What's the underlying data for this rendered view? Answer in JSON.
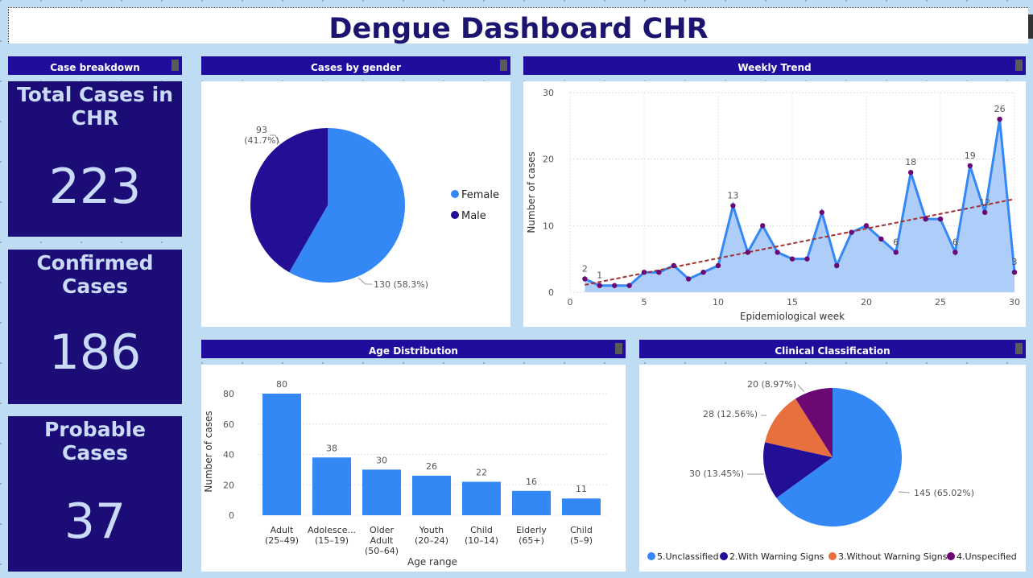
{
  "dashboard": {
    "title": "Dengue Dashboard CHR"
  },
  "kpis": {
    "header": "Case breakdown",
    "total": {
      "label": "Total Cases in CHR",
      "value": "223"
    },
    "confirmed": {
      "label": "Confirmed Cases",
      "value": "186"
    },
    "probable": {
      "label": "Probable Cases",
      "value": "37"
    }
  },
  "panels": {
    "gender_title": "Cases by gender",
    "trend_title": "Weekly Trend",
    "age_title": "Age Distribution",
    "clinical_title": "Clinical Classification"
  },
  "colors": {
    "blue": "#3488f5",
    "navy": "#230f95",
    "orange": "#e8703e",
    "purple": "#6b0873",
    "header": "#1f0e9e",
    "kpi_bg": "#1b0d75"
  },
  "chart_data": [
    {
      "type": "pie",
      "title": "Cases by gender",
      "slices": [
        {
          "name": "Female",
          "value": 130,
          "label": "130 (58.3%)"
        },
        {
          "name": "Male",
          "value": 93,
          "label": "93\n(41.7%)"
        }
      ],
      "legend_position": "right"
    },
    {
      "type": "line",
      "title": "Weekly Trend",
      "xlabel": "Epidemiological week",
      "ylabel": "Number of cases",
      "xlim": [
        0,
        30
      ],
      "ylim": [
        0,
        30
      ],
      "xticks": [
        0,
        5,
        10,
        15,
        20,
        25,
        30
      ],
      "yticks": [
        0,
        10,
        20,
        30
      ],
      "grid": true,
      "x": [
        1,
        2,
        3,
        4,
        5,
        6,
        7,
        8,
        9,
        10,
        11,
        12,
        13,
        14,
        15,
        16,
        17,
        18,
        19,
        20,
        21,
        22,
        23,
        24,
        25,
        26,
        27,
        28,
        29,
        30
      ],
      "values": [
        2,
        1,
        1,
        1,
        3,
        3,
        4,
        2,
        3,
        4,
        13,
        6,
        10,
        6,
        5,
        5,
        12,
        4,
        9,
        10,
        8,
        6,
        18,
        11,
        11,
        6,
        19,
        12,
        26,
        3
      ],
      "point_labels": [
        {
          "x": 1,
          "text": "2"
        },
        {
          "x": 2,
          "text": "1"
        },
        {
          "x": 11,
          "text": "13"
        },
        {
          "x": 22,
          "text": "6"
        },
        {
          "x": 23,
          "text": "18"
        },
        {
          "x": 26,
          "text": "6"
        },
        {
          "x": 27,
          "text": "19"
        },
        {
          "x": 28,
          "text": "12"
        },
        {
          "x": 29,
          "text": "26"
        },
        {
          "x": 30,
          "text": "3"
        }
      ],
      "trendline": {
        "style": "dashed",
        "from": [
          1,
          1.1
        ],
        "to": [
          30,
          14
        ]
      }
    },
    {
      "type": "bar",
      "title": "Age Distribution",
      "xlabel": "Age range",
      "ylabel": "Number of cases",
      "ylim": [
        0,
        80
      ],
      "yticks": [
        0,
        20,
        40,
        60,
        80
      ],
      "categories": [
        [
          "Adult",
          "(25–49)"
        ],
        [
          "Adolesce...",
          "(15–19)"
        ],
        [
          "Older",
          "Adult",
          "(50–64)"
        ],
        [
          "Youth",
          "(20–24)"
        ],
        [
          "Child",
          "(10–14)"
        ],
        [
          "Elderly",
          "(65+)"
        ],
        [
          "Child",
          "(5–9)"
        ]
      ],
      "values": [
        80,
        38,
        30,
        26,
        22,
        16,
        11
      ]
    },
    {
      "type": "pie",
      "title": "Clinical Classification",
      "slices": [
        {
          "name": "5.Unclassified",
          "value": 145,
          "label": "145 (65.02%)"
        },
        {
          "name": "2.With Warning Signs",
          "value": 30,
          "label": "30 (13.45%)"
        },
        {
          "name": "3.Without Warning Signs",
          "value": 28,
          "label": "28 (12.56%)"
        },
        {
          "name": "4.Unspecified",
          "value": 20,
          "label": "20 (8.97%)"
        }
      ],
      "legend_position": "bottom"
    }
  ]
}
